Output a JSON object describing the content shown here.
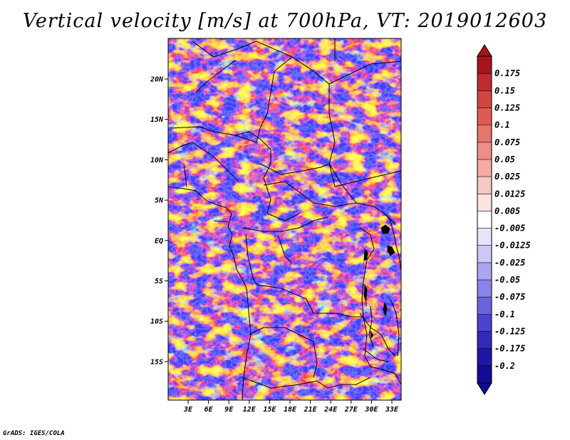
{
  "title": "Vertical velocity [m/s] at 700hPa, VT: 2019012603",
  "credit": "GrADS: IGES/COLA",
  "map": {
    "lat_labels": [
      "20N",
      "15N",
      "10N",
      "5N",
      "EQ",
      "5S",
      "10S",
      "15S"
    ],
    "lon_labels": [
      "3E",
      "6E",
      "9E",
      "12E",
      "15E",
      "18E",
      "21E",
      "24E",
      "27E",
      "30E",
      "33E"
    ]
  },
  "colorbar": {
    "labels": [
      "0.175",
      "0.15",
      "0.125",
      "0.1",
      "0.075",
      "0.05",
      "0.025",
      "0.0125",
      "0.005",
      "-0.005",
      "-0.0125",
      "-0.025",
      "-0.05",
      "-0.075",
      "-0.1",
      "-0.125",
      "-0.175",
      "-0.2"
    ],
    "colors": [
      "#a8141c",
      "#c02a2e",
      "#d44540",
      "#e05a55",
      "#e8756c",
      "#ee8f86",
      "#f3aba3",
      "#f7c8c2",
      "#fbe3df",
      "#ffffff",
      "#e6e4fb",
      "#cbc8f6",
      "#aaa6f0",
      "#8a84e8",
      "#6b63dd",
      "#4c43cf",
      "#3229bd",
      "#1e16a8",
      "#120c92"
    ],
    "top_arrow_color": "#a8141c",
    "bottom_arrow_color": "#120c92"
  }
}
